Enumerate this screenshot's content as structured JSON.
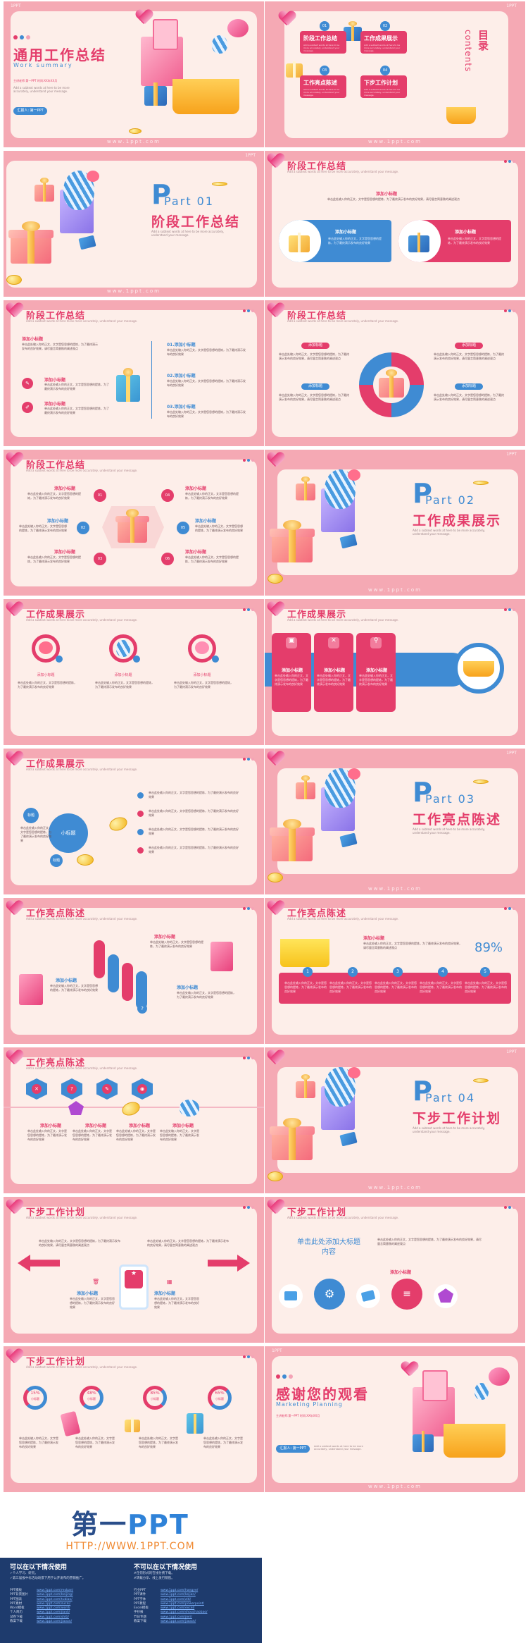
{
  "brand": "1PPT",
  "watermark": "www.1ppt.com",
  "sub_placeholder": "Add a subtext words at here to be more accurately, understand your message.",
  "body_placeholder": "单击此处输入你的正文，文字是您思想的提炼，为了最终演示发布的良好效果，请尽量言简意赅的阐述观点",
  "body_short": "单击此处输入你的正文，文字是您思想的提炼，为了最终演示发布的良好效果",
  "item_title": "添加小标题",
  "slide1": {
    "title": "通用工作总结",
    "subtitle": "Work summary",
    "meta": "主讲老师:第一PPT  时间:XX年XX月",
    "desc": "Add a subtext words at here to be more accurately, understand your message.",
    "button": "汇报人: 第一PPT"
  },
  "slide2": {
    "title_cn": "目录",
    "title_en": "contents",
    "items": [
      {
        "num": "01",
        "label": "阶段工作总结"
      },
      {
        "num": "02",
        "label": "工作成果展示"
      },
      {
        "num": "03",
        "label": "工作亮点陈述"
      },
      {
        "num": "04",
        "label": "下步工作计划"
      }
    ]
  },
  "sections": {
    "s1": "阶段工作总结",
    "s2": "工作成果展示",
    "s3": "工作亮点陈述",
    "s4": "下步工作计划"
  },
  "part_labels": [
    "Part 01",
    "Part 02",
    "Part 03",
    "Part 04"
  ],
  "slide4": {
    "center_title": "添加小标题",
    "pills": [
      "添加标题",
      "添加标题"
    ]
  },
  "slide5": {
    "items": [
      "01.添加小标题",
      "02.添加小标题",
      "03.添加小标题"
    ]
  },
  "slide6": {
    "pills": [
      "添加标题",
      "添加标题",
      "添加标题",
      "添加标题"
    ]
  },
  "slide7": {
    "nums": [
      "01",
      "02",
      "03",
      "04",
      "05",
      "06"
    ]
  },
  "slide9": {
    "pills": [
      "添加小标题",
      "添加小标题",
      "添加小标题"
    ]
  },
  "slide11": {
    "center": "小标题",
    "side": [
      "标题",
      "标题"
    ]
  },
  "slide14": {
    "percent": "89%",
    "nums": [
      "1",
      "2",
      "3",
      "4",
      "5"
    ]
  },
  "slide17": {
    "headline": "单击此处添加大标题内容"
  },
  "slide18": {
    "percents": [
      "15%",
      "48%",
      "85%",
      "65%"
    ],
    "sublabel": "小标题"
  },
  "slide19": {
    "title": "感谢您的观看",
    "subtitle": "Marketing Planning",
    "meta": "主讲老师:第一PPT  时间:XX年XX月",
    "button": "汇报人: 第一PPT"
  },
  "footer": {
    "logo_a": "第一",
    "logo_b": "PPT",
    "url": "HTTP://WWW.1PPT.COM",
    "can_title": "可以在以下情况使用",
    "can_lines": [
      "✓个人学习、研究。",
      "✓第三届报中标活动场景下用于公开发布的营销推广。"
    ],
    "cannot_title": "不可以在以下情况使用",
    "cannot_lines": [
      "✗任何形式的在线付费下载。",
      "✗转载分享、线上发行销售。"
    ],
    "links_left": [
      {
        "label": "PPT模板",
        "url": "www.1ppt.com/moban/"
      },
      {
        "label": "PPT背景图片",
        "url": "www.1ppt.com/beijing/"
      },
      {
        "label": "PPT图表",
        "url": "www.1ppt.com/tubiao/"
      },
      {
        "label": "PPT素材",
        "url": "www.1ppt.com/sucai/"
      },
      {
        "label": "Word模板",
        "url": "www.1ppt.com/word/"
      },
      {
        "label": "个人简历",
        "url": "www.1ppt.com/jianli/"
      },
      {
        "label": "试卷下载",
        "url": "www.1ppt.com/shiti/"
      },
      {
        "label": "教案下载",
        "url": "www.1ppt.com/jiaoan/"
      }
    ],
    "links_right": [
      {
        "label": "行业PPT",
        "url": "www.1ppt.com/hangye/"
      },
      {
        "label": "PPT课件",
        "url": "www.1ppt.com/kejian/"
      },
      {
        "label": "PPT字体",
        "url": "www.1ppt.com/ziti/"
      },
      {
        "label": "PPT教程",
        "url": "www.1ppt.com/powerpoint/"
      },
      {
        "label": "Excel模板",
        "url": "www.1ppt.com/excel/"
      },
      {
        "label": "手抄报",
        "url": "www.1ppt.com/shouchaobao/"
      },
      {
        "label": "节日专题",
        "url": "www.1ppt.com/jieri/"
      },
      {
        "label": "教案下载",
        "url": "www.1ppt.com/jiaoan/"
      }
    ]
  },
  "colors": {
    "pink": "#e43d6b",
    "blue": "#3f8bd3",
    "bg": "#f5a9b4",
    "cream": "#fdeee9"
  }
}
